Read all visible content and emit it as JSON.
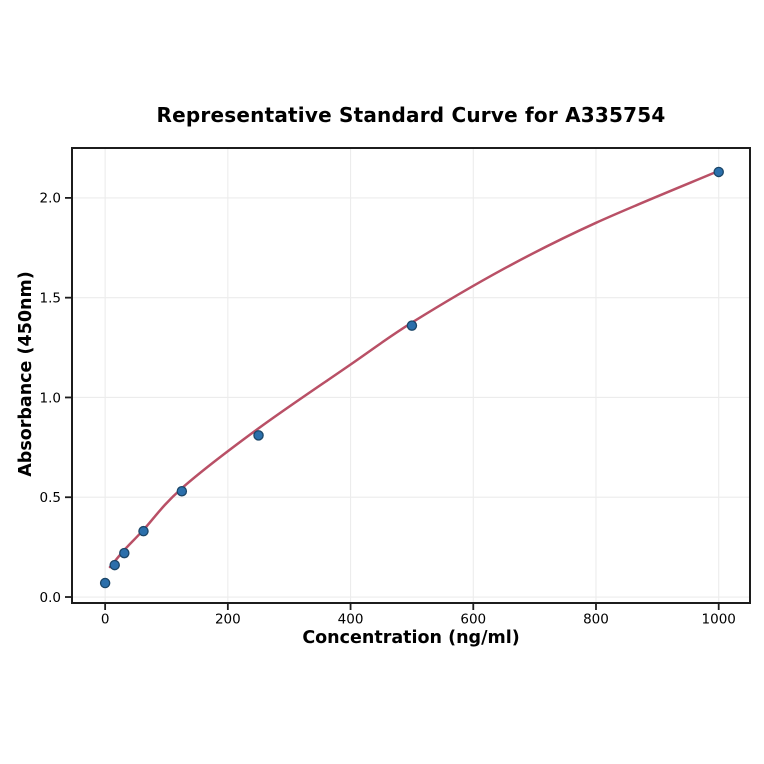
{
  "chart_data": {
    "type": "scatter",
    "title": "Representative Standard Curve for A335754",
    "xlabel": "Concentration (ng/ml)",
    "ylabel": "Absorbance (450nm)",
    "x_tick_labels": [
      "0",
      "200",
      "400",
      "600",
      "800",
      "1000"
    ],
    "x_tick_values": [
      0,
      200,
      400,
      600,
      800,
      1000
    ],
    "y_tick_labels": [
      "0.0",
      "0.5",
      "1.0",
      "1.5",
      "2.0"
    ],
    "y_tick_values": [
      0,
      0.5,
      1.0,
      1.5,
      2.0
    ],
    "xlim": [
      -54,
      1051
    ],
    "ylim": [
      -0.03,
      2.25
    ],
    "grid": true,
    "legend_position": "none",
    "colors": {
      "marker_fill": "#2b6fab",
      "marker_edge": "#1b4668",
      "curve": "#b95066",
      "gridline": "#ececec",
      "spine": "#1c1c1c",
      "background": "#ffffff"
    },
    "series": [
      {
        "name": "standards",
        "type": "scatter",
        "x": [
          0,
          15.6,
          31.25,
          62.5,
          125,
          250,
          500,
          1000
        ],
        "y": [
          0.07,
          0.16,
          0.22,
          0.33,
          0.53,
          0.81,
          1.36,
          2.13
        ]
      },
      {
        "name": "fitted-curve",
        "type": "line",
        "x": [
          8,
          31,
          62,
          125,
          250,
          400,
          500,
          650,
          800,
          1000
        ],
        "y": [
          0.15,
          0.235,
          0.335,
          0.545,
          0.845,
          1.165,
          1.375,
          1.645,
          1.875,
          2.135
        ]
      }
    ]
  }
}
